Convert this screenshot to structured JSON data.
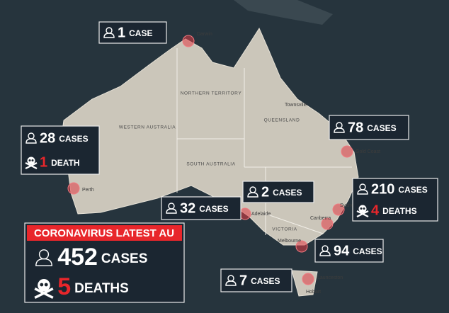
{
  "map_labels": [
    "Darwin",
    "NORTHERN TERRITORY",
    "Townsville",
    "QUEENSLAND",
    "WESTERN AUSTRALIA",
    "SOUTH AUSTRALIA",
    "Gold Coast",
    "Perth",
    "Adelaide",
    "Sydney",
    "Canberra",
    "Melbourne",
    "VICTORIA",
    "Launceston",
    "Hobart"
  ],
  "callouts": [
    {
      "cases": 1,
      "cases_label": "CASE"
    },
    {
      "cases": 28,
      "cases_label": "CASES",
      "deaths": 1,
      "deaths_label": "DEATH"
    },
    {
      "cases": 78,
      "cases_label": "CASES"
    },
    {
      "cases": 2,
      "cases_label": "CASES"
    },
    {
      "cases": 210,
      "cases_label": "CASES",
      "deaths": 4,
      "deaths_label": "DEATHS"
    },
    {
      "cases": 32,
      "cases_label": "CASES"
    },
    {
      "cases": 94,
      "cases_label": "CASES"
    },
    {
      "cases": 7,
      "cases_label": "CASES"
    }
  ],
  "summary": {
    "title": "CORONAVIRUS LATEST AU",
    "cases": 452,
    "cases_label": "CASES",
    "deaths": 5,
    "deaths_label": "DEATHS"
  }
}
